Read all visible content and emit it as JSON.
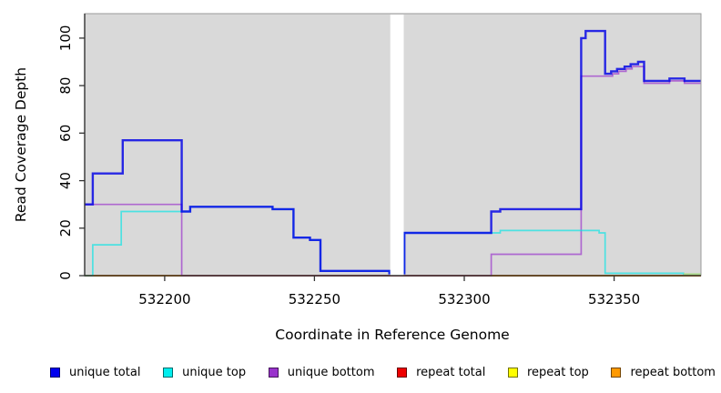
{
  "chart_data": {
    "type": "line",
    "style": "step",
    "title": "",
    "xlabel": "Coordinate in Reference Genome",
    "ylabel": "Read Coverage Depth",
    "xlim": [
      532173.3,
      532379.0
    ],
    "ylim": [
      0,
      110.3
    ],
    "x_ticks": [
      532200,
      532250,
      532300,
      532350
    ],
    "y_ticks": [
      0,
      20,
      40,
      60,
      80,
      100
    ],
    "grid": false,
    "panel_bg": "#D9D9D9",
    "axis_color": "#333333",
    "border_color": "#999999",
    "gap_region": {
      "from": 532275.3,
      "to": 532279.8
    },
    "series": [
      {
        "id": "repeat-total",
        "label": "repeat total",
        "color": "#DD0000",
        "opacity": 1,
        "width": 1.4,
        "points": [
          [
            532173.3,
            0
          ]
        ]
      },
      {
        "id": "repeat-top",
        "label": "repeat top",
        "color": "#F0F000",
        "opacity": 1,
        "width": 1.4,
        "points": [
          [
            532173.3,
            0
          ]
        ]
      },
      {
        "id": "repeat-bottom",
        "label": "repeat bottom",
        "color": "#FF9412",
        "opacity": 1,
        "width": 2,
        "points": [
          [
            532173.3,
            0
          ]
        ]
      },
      {
        "id": "unique-bottom",
        "label": "unique bottom",
        "color": "#9932CC",
        "opacity": 0.68,
        "width": 1.7,
        "points": [
          [
            532173.3,
            30
          ],
          [
            532205.7,
            0
          ],
          [
            532309,
            9
          ],
          [
            532339,
            84
          ],
          [
            532349.5,
            85
          ],
          [
            532351.5,
            86
          ],
          [
            532354,
            87
          ],
          [
            532356,
            88
          ],
          [
            532360,
            81
          ],
          [
            532368.5,
            82
          ],
          [
            532373.5,
            81
          ]
        ]
      },
      {
        "id": "unique-top",
        "label": "unique top",
        "color": "#00E5E5",
        "opacity": 0.65,
        "width": 1.7,
        "points": [
          [
            532173.3,
            0
          ],
          [
            532176,
            13
          ],
          [
            532185.5,
            27
          ],
          [
            532208.5,
            29
          ],
          [
            532236,
            28
          ],
          [
            532243,
            16
          ],
          [
            532248.5,
            15
          ],
          [
            532252,
            2
          ],
          [
            532275,
            1
          ],
          [
            532280,
            18
          ],
          [
            532312,
            19
          ],
          [
            532345,
            18
          ],
          [
            532347,
            1
          ],
          [
            532373.2,
            0.6
          ]
        ]
      },
      {
        "id": "unique-total",
        "label": "unique total",
        "color": "#0000E6",
        "opacity": 0.82,
        "width": 2.4,
        "points": [
          [
            532173.3,
            30
          ],
          [
            532176,
            43
          ],
          [
            532186,
            57
          ],
          [
            532205.7,
            27
          ],
          [
            532208.5,
            29
          ],
          [
            532236,
            28
          ],
          [
            532243,
            16
          ],
          [
            532248.5,
            15
          ],
          [
            532252,
            2
          ],
          [
            532275,
            1
          ],
          [
            532280,
            18
          ],
          [
            532309,
            27
          ],
          [
            532312,
            28
          ],
          [
            532339,
            100
          ],
          [
            532340.5,
            103
          ],
          [
            532347,
            85
          ],
          [
            532349,
            86
          ],
          [
            532351,
            87
          ],
          [
            532353.5,
            88
          ],
          [
            532355.5,
            89
          ],
          [
            532358,
            90
          ],
          [
            532360,
            82
          ],
          [
            532368.5,
            83
          ],
          [
            532373.5,
            82
          ]
        ]
      },
      {
        "id": "blend-segment",
        "label": null,
        "color": "#AADA8C",
        "opacity": 1,
        "width": 1.6,
        "points": [
          [
            532373.2,
            0.7
          ]
        ]
      }
    ],
    "legend": {
      "position": "bottom",
      "entries": [
        {
          "id": "unique-total",
          "label": "unique total",
          "color": "#0000EE"
        },
        {
          "id": "unique-top",
          "label": "unique top",
          "color": "#00EEEE"
        },
        {
          "id": "unique-bottom",
          "label": "unique bottom",
          "color": "#9932CC"
        },
        {
          "id": "repeat-total",
          "label": "repeat total",
          "color": "#EE0000"
        },
        {
          "id": "repeat-top",
          "label": "repeat top",
          "color": "#FFFF00"
        },
        {
          "id": "repeat-bottom",
          "label": "repeat bottom",
          "color": "#FF9900"
        }
      ]
    }
  }
}
